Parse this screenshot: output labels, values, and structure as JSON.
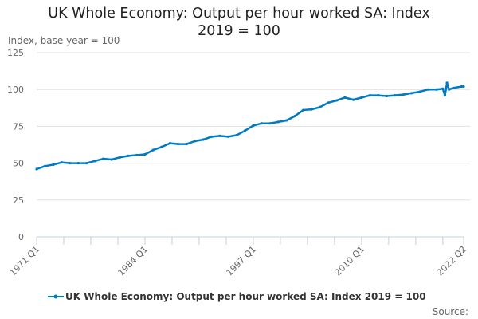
{
  "chart_data": {
    "type": "line",
    "title": "UK Whole Economy: Output per hour worked SA: Index 2019 = 100",
    "ylabel": "Index, base year = 100",
    "xlabel": "",
    "ylim": [
      0,
      125
    ],
    "yticks": [
      0,
      25,
      50,
      75,
      100,
      125
    ],
    "xrange": [
      "1971 Q1",
      "2022 Q2"
    ],
    "xtick_labels": [
      "1971 Q1",
      "1984 Q1",
      "1997 Q1",
      "2010 Q1",
      "2022 Q2"
    ],
    "grid": true,
    "legend": "bottom",
    "color": "#007ac3",
    "series": [
      {
        "name": "UK Whole Economy: Output per hour worked SA: Index 2019 = 100",
        "x": [
          "1971 Q1",
          "1972 Q1",
          "1973 Q1",
          "1974 Q1",
          "1975 Q1",
          "1976 Q1",
          "1977 Q1",
          "1978 Q1",
          "1979 Q1",
          "1980 Q1",
          "1981 Q1",
          "1982 Q1",
          "1983 Q1",
          "1984 Q1",
          "1985 Q1",
          "1986 Q1",
          "1987 Q1",
          "1988 Q1",
          "1989 Q1",
          "1990 Q1",
          "1991 Q1",
          "1992 Q1",
          "1993 Q1",
          "1994 Q1",
          "1995 Q1",
          "1996 Q1",
          "1997 Q1",
          "1998 Q1",
          "1999 Q1",
          "2000 Q1",
          "2001 Q1",
          "2002 Q1",
          "2003 Q1",
          "2004 Q1",
          "2005 Q1",
          "2006 Q1",
          "2007 Q1",
          "2008 Q1",
          "2009 Q1",
          "2010 Q1",
          "2011 Q1",
          "2012 Q1",
          "2013 Q1",
          "2014 Q1",
          "2015 Q1",
          "2016 Q1",
          "2017 Q1",
          "2018 Q1",
          "2019 Q1",
          "2019 Q4",
          "2020 Q1",
          "2020 Q2",
          "2020 Q3",
          "2021 Q1",
          "2022 Q1",
          "2022 Q2"
        ],
        "values": [
          46,
          48,
          49,
          50.5,
          50,
          50,
          50,
          51.5,
          53,
          52.5,
          54,
          55,
          55.5,
          56,
          59,
          61,
          63.5,
          63,
          63,
          65,
          66,
          68,
          68.5,
          68,
          69,
          72,
          75.5,
          77,
          77,
          78,
          79,
          82,
          86,
          86.5,
          88,
          91,
          92.5,
          94.5,
          93,
          94.5,
          96,
          96,
          95.5,
          96,
          96.5,
          97.5,
          98.5,
          100,
          100,
          100.5,
          96,
          104.5,
          100,
          101,
          102,
          102
        ]
      }
    ]
  },
  "legend_label": "UK Whole Economy: Output per hour worked SA: Index 2019 = 100",
  "source_label": "Source:"
}
